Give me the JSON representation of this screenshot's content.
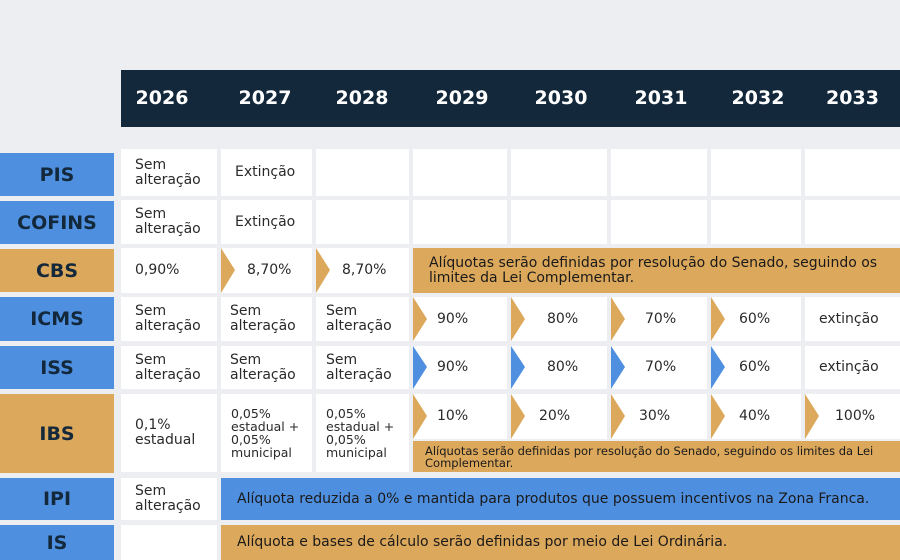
{
  "years": [
    "2026",
    "2027",
    "2028",
    "2029",
    "2030",
    "2031",
    "2032",
    "2033"
  ],
  "rows": {
    "pis": {
      "label": "PIS",
      "c2026": "Sem alteração",
      "c2027": "Extinção"
    },
    "cofins": {
      "label": "COFINS",
      "c2026": "Sem alteração",
      "c2027": "Extinção"
    },
    "cbs": {
      "label": "CBS",
      "c2026": "0,90%",
      "c2027": "8,70%",
      "c2028": "8,70%",
      "note": "Alíquotas serão definidas por resolução do Senado, seguindo os limites da Lei Complementar."
    },
    "icms": {
      "label": "ICMS",
      "c2026": "Sem alteração",
      "c2027": "Sem alteração",
      "c2028": "Sem alteração",
      "c2029": "90%",
      "c2030": "80%",
      "c2031": "70%",
      "c2032": "60%",
      "c2033": "extinção"
    },
    "iss": {
      "label": "ISS",
      "c2026": "Sem alteração",
      "c2027": "Sem alteração",
      "c2028": "Sem alteração",
      "c2029": "90%",
      "c2030": "80%",
      "c2031": "70%",
      "c2032": "60%",
      "c2033": "extinção"
    },
    "ibs": {
      "label": "IBS",
      "c2026": "0,1% estadual",
      "c2027": "0,05% estadual + 0,05% municipal",
      "c2028": "0,05% estadual + 0,05% municipal",
      "c2029": "10%",
      "c2030": "20%",
      "c2031": "30%",
      "c2032": "40%",
      "c2033": "100%",
      "note": "Alíquotas serão definidas por resolução do Senado, seguindo os limites da Lei Complementar."
    },
    "ipi": {
      "label": "IPI",
      "c2026": "Sem alteração",
      "note": "Alíquota reduzida a 0% e mantida para produtos que possuem incentivos na Zona Franca."
    },
    "is": {
      "label": "IS",
      "note": "Alíquota e bases de cálculo serão definidas por meio de Lei Ordinária."
    }
  },
  "colors": {
    "header": "#13283a",
    "blue": "#4f8fdf",
    "gold": "#dca85b",
    "cell": "#ffffff",
    "page": "#eceef1"
  }
}
